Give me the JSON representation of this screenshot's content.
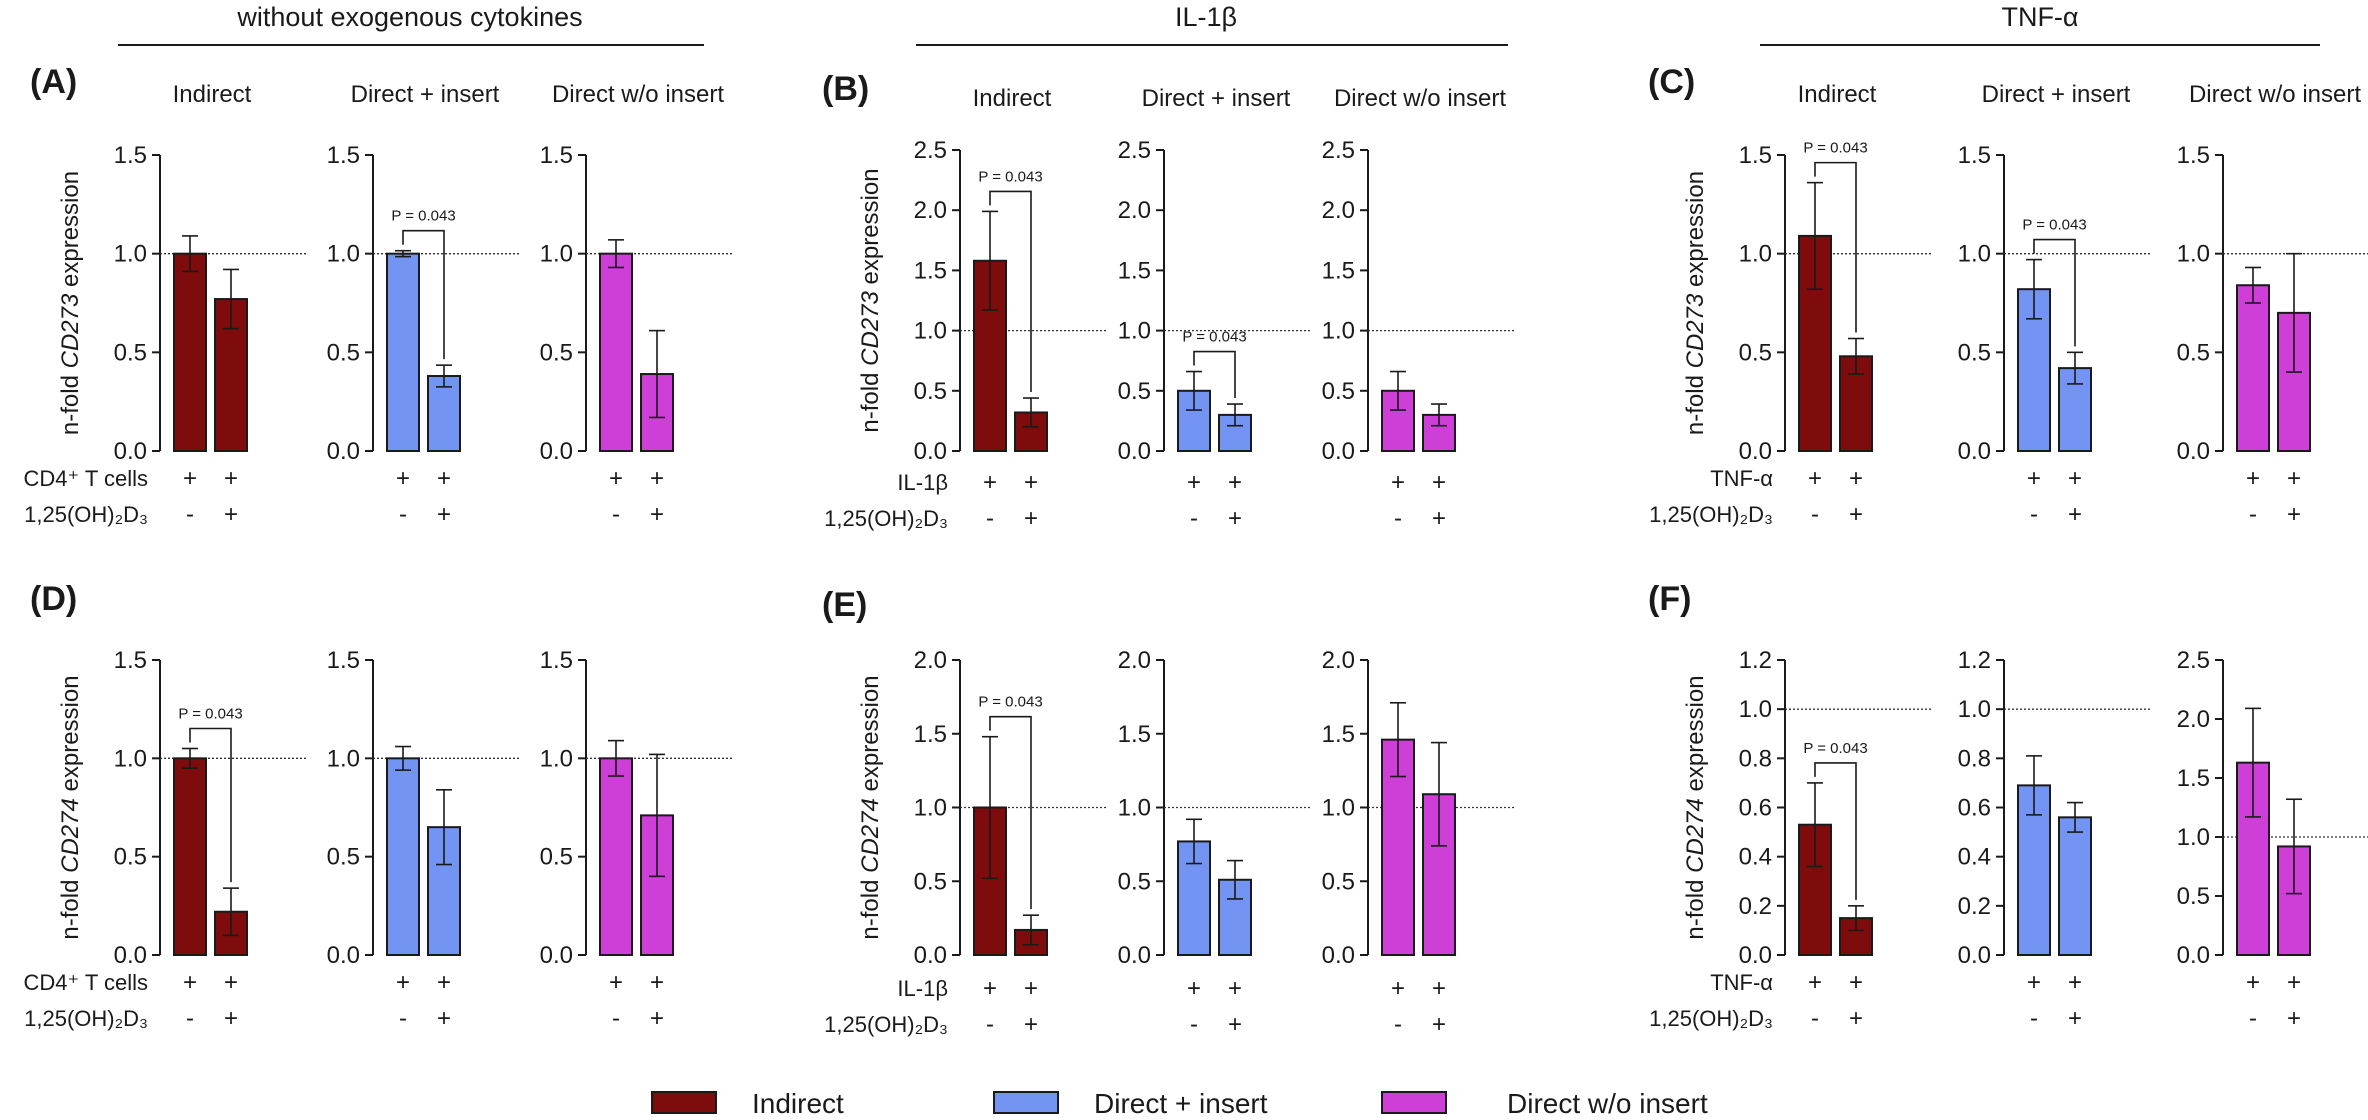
{
  "group_titles": [
    "without exogenous cytokines",
    "IL-1β",
    "TNF-α"
  ],
  "colors": {
    "Indirect": "#7e0c0c",
    "Direct + insert": "#7394f2",
    "Direct w/o insert": "#cd3fd7",
    "text": "#1a1a1a"
  },
  "legend": [
    "Indirect",
    "Direct + insert",
    "Direct w/o insert"
  ],
  "row_labels": {
    "A": [
      "CD4⁺ T cells",
      "1,25(OH)₂D₃"
    ],
    "B": [
      "IL-1β",
      "1,25(OH)₂D₃"
    ],
    "C": [
      "TNF-α",
      "1,25(OH)₂D₃"
    ],
    "D": [
      "CD4⁺ T cells",
      "1,25(OH)₂D₃"
    ],
    "E": [
      "IL-1β",
      "1,25(OH)₂D₃"
    ],
    "F": [
      "TNF-α",
      "1,25(OH)₂D₃"
    ]
  },
  "treatment_signs": [
    [
      "+",
      "+"
    ],
    [
      "-",
      "+"
    ]
  ],
  "chart_data": [
    {
      "panel": "(A)",
      "type": "bar",
      "ylabel": "n-fold CD273 expression",
      "gene": "CD273",
      "subplots": [
        {
          "title": "Indirect",
          "ylim": [
            0,
            1.5
          ],
          "ticks": [
            "0.0",
            "0.5",
            "1.0",
            "1.5"
          ],
          "reference": 1.0,
          "values": [
            1.0,
            0.77
          ],
          "errors": [
            0.09,
            0.15
          ]
        },
        {
          "title": "Direct + insert",
          "ylim": [
            0,
            1.5
          ],
          "ticks": [
            "0.0",
            "0.5",
            "1.0",
            "1.5"
          ],
          "reference": 1.0,
          "values": [
            1.0,
            0.38
          ],
          "errors": [
            0.015,
            0.055
          ],
          "significance": "P = 0.043"
        },
        {
          "title": "Direct w/o insert",
          "ylim": [
            0,
            1.5
          ],
          "ticks": [
            "0.0",
            "0.5",
            "1.0",
            "1.5"
          ],
          "reference": 1.0,
          "values": [
            1.0,
            0.39
          ],
          "errors": [
            0.07,
            0.22
          ]
        }
      ]
    },
    {
      "panel": "(B)",
      "type": "bar",
      "ylabel": "n-fold CD273 expression",
      "gene": "CD273",
      "subplots": [
        {
          "title": "Indirect",
          "ylim": [
            0,
            2.5
          ],
          "ticks": [
            "0.0",
            "0.5",
            "1.0",
            "1.5",
            "2.0",
            "2.5"
          ],
          "reference": 1.0,
          "values": [
            1.58,
            0.32
          ],
          "errors": [
            0.41,
            0.12
          ],
          "significance": "P = 0.043"
        },
        {
          "title": "Direct + insert",
          "ylim": [
            0,
            2.5
          ],
          "ticks": [
            "0.0",
            "0.5",
            "1.0",
            "1.5",
            "2.0",
            "2.5"
          ],
          "reference": 1.0,
          "values": [
            0.5,
            0.3
          ],
          "errors": [
            0.16,
            0.09
          ],
          "significance": "P = 0.043"
        },
        {
          "title": "Direct w/o insert",
          "ylim": [
            0,
            2.5
          ],
          "ticks": [
            "0.0",
            "0.5",
            "1.0",
            "1.5",
            "2.0",
            "2.5"
          ],
          "reference": 1.0,
          "values": [
            0.5,
            0.3
          ],
          "errors": [
            0.16,
            0.09
          ]
        }
      ]
    },
    {
      "panel": "(C)",
      "type": "bar",
      "ylabel": "n-fold CD273 expression",
      "gene": "CD273",
      "subplots": [
        {
          "title": "Indirect",
          "ylim": [
            0,
            1.5
          ],
          "ticks": [
            "0.0",
            "0.5",
            "1.0",
            "1.5"
          ],
          "reference": 1.0,
          "values": [
            1.09,
            0.48
          ],
          "errors": [
            0.27,
            0.09
          ],
          "significance": "P = 0.043"
        },
        {
          "title": "Direct + insert",
          "ylim": [
            0,
            1.5
          ],
          "ticks": [
            "0.0",
            "0.5",
            "1.0",
            "1.5"
          ],
          "reference": 1.0,
          "values": [
            0.82,
            0.42
          ],
          "errors": [
            0.15,
            0.08
          ],
          "significance": "P = 0.043"
        },
        {
          "title": "Direct w/o insert",
          "ylim": [
            0,
            1.5
          ],
          "ticks": [
            "0.0",
            "0.5",
            "1.0",
            "1.5"
          ],
          "reference": 1.0,
          "values": [
            0.84,
            0.7
          ],
          "errors": [
            0.09,
            0.3
          ]
        }
      ]
    },
    {
      "panel": "(D)",
      "type": "bar",
      "ylabel": "n-fold CD274 expression",
      "gene": "CD274",
      "subplots": [
        {
          "title": "",
          "ylim": [
            0,
            1.5
          ],
          "ticks": [
            "0.0",
            "0.5",
            "1.0",
            "1.5"
          ],
          "reference": 1.0,
          "values": [
            1.0,
            0.22
          ],
          "errors": [
            0.05,
            0.12
          ],
          "significance": "P = 0.043"
        },
        {
          "title": "",
          "ylim": [
            0,
            1.5
          ],
          "ticks": [
            "0.0",
            "0.5",
            "1.0",
            "1.5"
          ],
          "reference": 1.0,
          "values": [
            1.0,
            0.65
          ],
          "errors": [
            0.06,
            0.19
          ]
        },
        {
          "title": "",
          "ylim": [
            0,
            1.5
          ],
          "ticks": [
            "0.0",
            "0.5",
            "1.0",
            "1.5"
          ],
          "reference": 1.0,
          "values": [
            1.0,
            0.71
          ],
          "errors": [
            0.09,
            0.31
          ]
        }
      ]
    },
    {
      "panel": "(E)",
      "type": "bar",
      "ylabel": "n-fold CD274 expression",
      "gene": "CD274",
      "subplots": [
        {
          "title": "",
          "ylim": [
            0,
            2.0
          ],
          "ticks": [
            "0.0",
            "0.5",
            "1.0",
            "1.5",
            "2.0"
          ],
          "reference": 1.0,
          "values": [
            1.0,
            0.17
          ],
          "errors": [
            0.48,
            0.1
          ],
          "significance": "P = 0.043"
        },
        {
          "title": "",
          "ylim": [
            0,
            2.0
          ],
          "ticks": [
            "0.0",
            "0.5",
            "1.0",
            "1.5",
            "2.0"
          ],
          "reference": 1.0,
          "values": [
            0.77,
            0.51
          ],
          "errors": [
            0.15,
            0.13
          ]
        },
        {
          "title": "",
          "ylim": [
            0,
            2.0
          ],
          "ticks": [
            "0.0",
            "0.5",
            "1.0",
            "1.5",
            "2.0"
          ],
          "reference": 1.0,
          "values": [
            1.46,
            1.09
          ],
          "errors": [
            0.25,
            0.35
          ]
        }
      ]
    },
    {
      "panel": "(F)",
      "type": "bar",
      "ylabel": "n-fold CD274 expression",
      "gene": "CD274",
      "subplots": [
        {
          "title": "",
          "ylim": [
            0,
            1.2
          ],
          "ticks": [
            "0.0",
            "0.2",
            "0.4",
            "0.6",
            "0.8",
            "1.0",
            "1.2"
          ],
          "reference": 1.0,
          "values": [
            0.53,
            0.15
          ],
          "errors": [
            0.17,
            0.05
          ],
          "significance": "P = 0.043"
        },
        {
          "title": "",
          "ylim": [
            0,
            1.2
          ],
          "ticks": [
            "0.0",
            "0.2",
            "0.4",
            "0.6",
            "0.8",
            "1.0",
            "1.2"
          ],
          "reference": 1.0,
          "values": [
            0.69,
            0.56
          ],
          "errors": [
            0.12,
            0.06
          ]
        },
        {
          "title": "",
          "ylim": [
            0,
            2.5
          ],
          "ticks": [
            "0.0",
            "0.5",
            "1.0",
            "1.5",
            "2.0",
            "2.5"
          ],
          "reference": 1.0,
          "values": [
            1.63,
            0.92
          ],
          "errors": [
            0.46,
            0.4
          ]
        }
      ]
    }
  ]
}
